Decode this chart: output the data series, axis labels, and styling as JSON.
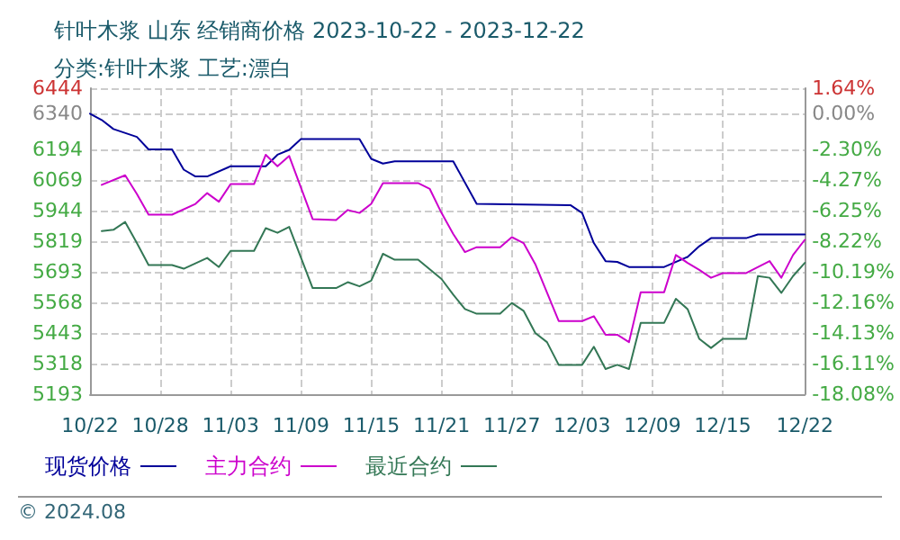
{
  "chart_data": {
    "type": "line",
    "title": "针叶木浆 山东 经销商价格 2023-10-22 - 2023-12-22",
    "subtitle": "分类:针叶木浆 工艺:漂白",
    "annotations": [
      "© 2024.08"
    ],
    "xlim": [
      "--10-22",
      "--12-22"
    ],
    "xticks": [
      {
        "value": "--10-22",
        "label": "10/22"
      },
      {
        "value": "--10-28",
        "label": "10/28"
      },
      {
        "value": "--11-03",
        "label": "11/03"
      },
      {
        "value": "--11-09",
        "label": "11/09"
      },
      {
        "value": "--11-15",
        "label": "11/15"
      },
      {
        "value": "--11-21",
        "label": "11/21"
      },
      {
        "value": "--11-27",
        "label": "11/27"
      },
      {
        "value": "--12-03",
        "label": "12/03"
      },
      {
        "value": "--12-09",
        "label": "12/09"
      },
      {
        "value": "--12-15",
        "label": "12/15"
      },
      {
        "value": "--12-22",
        "label": "12/22"
      }
    ],
    "ylim": [
      5193,
      6444
    ],
    "yticks": [
      5193,
      5318,
      5443,
      5568,
      5693,
      5819,
      5944,
      6069,
      6194,
      6340,
      6444
    ],
    "y2lim": [
      -18.08,
      1.64
    ],
    "y2ticks": [
      {
        "value": -18.08,
        "label": "-18.08%"
      },
      {
        "value": -16.11,
        "label": "-16.11%"
      },
      {
        "value": -14.13,
        "label": "-14.13%"
      },
      {
        "value": -12.16,
        "label": "-12.16%"
      },
      {
        "value": -10.19,
        "label": "-10.19%"
      },
      {
        "value": -8.22,
        "label": "-8.22%"
      },
      {
        "value": -6.25,
        "label": "-6.25%"
      },
      {
        "value": -4.27,
        "label": "-4.27%"
      },
      {
        "value": -2.3,
        "label": "-2.30%"
      },
      {
        "value": 0,
        "label": "0.00%"
      },
      {
        "value": 1.64,
        "label": "1.64%"
      }
    ],
    "grid": true,
    "legend": "bottom",
    "marker": "none",
    "line_style": "solid",
    "series": [
      {
        "name": "现货价格",
        "color": "#000099",
        "x": [
          "--10-22",
          "--10-23",
          "--10-24",
          "--10-26",
          "--10-27",
          "--10-29",
          "--10-30",
          "--10-31",
          "--11-01",
          "--11-03",
          "--11-06",
          "--11-07",
          "--11-08",
          "--11-09",
          "--11-14",
          "--11-15",
          "--11-16",
          "--11-17",
          "--11-22",
          "--11-24",
          "--12-02",
          "--12-03",
          "--12-04",
          "--12-05",
          "--12-06",
          "--12-07",
          "--12-10",
          "--12-12",
          "--12-13",
          "--12-14",
          "--12-17",
          "--12-18",
          "--12-22"
        ],
        "values": [
          6340,
          6314,
          6277,
          6245,
          6194,
          6194,
          6111,
          6083,
          6083,
          6125,
          6125,
          6172,
          6192,
          6236,
          6236,
          6155,
          6136,
          6145,
          6145,
          5971,
          5966,
          5934,
          5811,
          5737,
          5734,
          5713,
          5713,
          5754,
          5798,
          5831,
          5831,
          5846,
          5846
        ]
      },
      {
        "name": "主力合约",
        "color": "#cc00cc",
        "x": [
          "--10-23",
          "--10-25",
          "--10-26",
          "--10-27",
          "--10-29",
          "--10-31",
          "--11-01",
          "--11-02",
          "--11-03",
          "--11-05",
          "--11-06",
          "--11-07",
          "--11-08",
          "--11-10",
          "--11-12",
          "--11-13",
          "--11-14",
          "--11-15",
          "--11-16",
          "--11-19",
          "--11-20",
          "--11-21",
          "--11-22",
          "--11-23",
          "--11-24",
          "--11-26",
          "--11-27",
          "--11-28",
          "--11-29",
          "--12-01",
          "--12-03",
          "--12-04",
          "--12-05",
          "--12-06",
          "--12-07",
          "--12-08",
          "--12-10",
          "--12-11",
          "--12-12",
          "--12-13",
          "--12-14",
          "--12-15",
          "--12-17",
          "--12-19",
          "--12-20",
          "--12-21",
          "--12-22"
        ],
        "values": [
          6049,
          6088,
          6012,
          5927,
          5927,
          5971,
          6015,
          5980,
          6052,
          6052,
          6172,
          6125,
          6167,
          5909,
          5905,
          5946,
          5934,
          5971,
          6056,
          6056,
          6032,
          5934,
          5848,
          5774,
          5794,
          5794,
          5835,
          5811,
          5725,
          5492,
          5492,
          5512,
          5436,
          5436,
          5406,
          5610,
          5610,
          5762,
          5730,
          5701,
          5669,
          5688,
          5688,
          5737,
          5669,
          5762,
          5824
        ]
      },
      {
        "name": "最近合约",
        "color": "#337755",
        "x": [
          "--10-23",
          "--10-24",
          "--10-25",
          "--10-26",
          "--10-27",
          "--10-29",
          "--10-30",
          "--11-01",
          "--11-02",
          "--11-03",
          "--11-05",
          "--11-06",
          "--11-07",
          "--11-08",
          "--11-10",
          "--11-12",
          "--11-13",
          "--11-14",
          "--11-15",
          "--11-16",
          "--11-17",
          "--11-19",
          "--11-21",
          "--11-22",
          "--11-23",
          "--11-24",
          "--11-26",
          "--11-27",
          "--11-28",
          "--11-29",
          "--11-30",
          "--12-01",
          "--12-03",
          "--12-04",
          "--12-05",
          "--12-06",
          "--12-07",
          "--12-08",
          "--12-10",
          "--12-11",
          "--12-12",
          "--12-13",
          "--12-14",
          "--12-15",
          "--12-17",
          "--12-18",
          "--12-19",
          "--12-20",
          "--12-21",
          "--12-22"
        ],
        "values": [
          5860,
          5865,
          5897,
          5811,
          5721,
          5721,
          5706,
          5750,
          5713,
          5779,
          5779,
          5872,
          5853,
          5877,
          5627,
          5627,
          5651,
          5634,
          5657,
          5767,
          5743,
          5743,
          5664,
          5600,
          5541,
          5522,
          5522,
          5566,
          5534,
          5443,
          5406,
          5313,
          5313,
          5387,
          5296,
          5313,
          5296,
          5485,
          5485,
          5583,
          5541,
          5419,
          5382,
          5419,
          5419,
          5676,
          5669,
          5607,
          5676,
          5730
        ]
      }
    ]
  }
}
